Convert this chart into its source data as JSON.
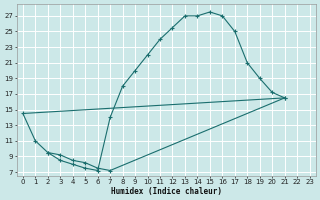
{
  "xlabel": "Humidex (Indice chaleur)",
  "bg_color": "#cce8e8",
  "line_color": "#1a6e6e",
  "grid_color": "#b0d8d8",
  "xlim": [
    -0.5,
    23.5
  ],
  "ylim": [
    6.5,
    28.5
  ],
  "xticks": [
    0,
    1,
    2,
    3,
    4,
    5,
    6,
    7,
    8,
    9,
    10,
    11,
    12,
    13,
    14,
    15,
    16,
    17,
    18,
    19,
    20,
    21,
    22,
    23
  ],
  "yticks": [
    7,
    9,
    11,
    13,
    15,
    17,
    19,
    21,
    23,
    25,
    27
  ],
  "line1_marked": [
    [
      0,
      14.5
    ],
    [
      1,
      11
    ],
    [
      2,
      9.5
    ],
    [
      3,
      8.5
    ],
    [
      4,
      8
    ],
    [
      5,
      7.5
    ],
    [
      6,
      7.2
    ],
    [
      7,
      14
    ],
    [
      8,
      18
    ],
    [
      9,
      20
    ],
    [
      10,
      22
    ],
    [
      11,
      24
    ],
    [
      12,
      25.5
    ],
    [
      13,
      27
    ],
    [
      14,
      27
    ],
    [
      15,
      27.5
    ],
    [
      16,
      27
    ],
    [
      17,
      25
    ],
    [
      18,
      21
    ],
    [
      19,
      19
    ],
    [
      20,
      17.2
    ],
    [
      21,
      16.5
    ]
  ],
  "line2": [
    [
      0,
      14.5
    ],
    [
      21,
      16.5
    ]
  ],
  "line3_marked": [
    [
      2,
      9.5
    ],
    [
      3,
      9.2
    ],
    [
      4,
      8.5
    ],
    [
      5,
      8.2
    ],
    [
      6,
      7.5
    ],
    [
      7,
      7.2
    ],
    [
      21,
      16.5
    ]
  ]
}
